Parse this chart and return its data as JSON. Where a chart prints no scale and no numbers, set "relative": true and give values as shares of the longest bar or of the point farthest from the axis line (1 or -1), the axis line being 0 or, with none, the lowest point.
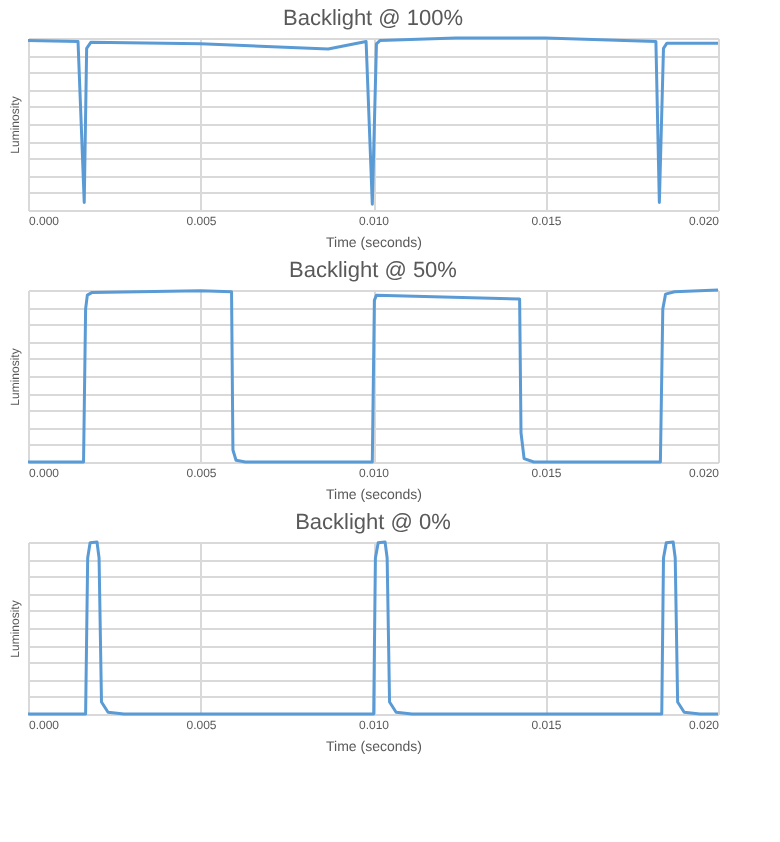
{
  "chart_data": [
    {
      "type": "line",
      "title": "Backlight @ 100%",
      "xlabel": "Time (seconds)",
      "ylabel": "Luminosity",
      "relative": true,
      "grid": true,
      "color": "#5b9bd5",
      "xlim": [
        0,
        0.02
      ],
      "xticks": [
        {
          "value": 0,
          "label": "0.000"
        },
        {
          "value": 0.005,
          "label": "0.005"
        },
        {
          "value": 0.01,
          "label": "0.010"
        },
        {
          "value": 0.015,
          "label": "0.015"
        },
        {
          "value": 0.02,
          "label": "0.020"
        }
      ],
      "x": [
        0,
        0.00145,
        0.00163,
        0.0017,
        0.00182,
        0.005,
        0.0087,
        0.0098,
        0.00998,
        0.0101,
        0.0102,
        0.0124,
        0.015,
        0.0182,
        0.0183,
        0.01842,
        0.01852,
        0.02
      ],
      "values": [
        0.985,
        0.98,
        0.044,
        0.94,
        0.975,
        0.966,
        0.936,
        0.98,
        0.034,
        0.966,
        0.985,
        1.0,
        1.0,
        0.98,
        0.044,
        0.94,
        0.97,
        0.97
      ]
    },
    {
      "type": "line",
      "title": "Backlight @ 50%",
      "xlabel": "Time (seconds)",
      "ylabel": "Luminosity",
      "relative": true,
      "grid": true,
      "color": "#5b9bd5",
      "xlim": [
        0,
        0.02
      ],
      "xticks": [
        {
          "value": 0,
          "label": "0.000"
        },
        {
          "value": 0.005,
          "label": "0.005"
        },
        {
          "value": 0.01,
          "label": "0.010"
        },
        {
          "value": 0.015,
          "label": "0.015"
        },
        {
          "value": 0.02,
          "label": "0.020"
        }
      ],
      "x": [
        0,
        0.00161,
        0.00167,
        0.00172,
        0.00186,
        0.005,
        0.0059,
        0.00594,
        0.00603,
        0.0063,
        0.00998,
        0.01004,
        0.0101,
        0.01425,
        0.01429,
        0.01438,
        0.01466,
        0.01833,
        0.0184,
        0.01848,
        0.01874,
        0.02
      ],
      "values": [
        0,
        0,
        0.89,
        0.97,
        0.986,
        0.995,
        0.99,
        0.07,
        0.01,
        0,
        0,
        0.94,
        0.97,
        0.947,
        0.17,
        0.02,
        0,
        0,
        0.89,
        0.976,
        0.99,
        1.0
      ]
    },
    {
      "type": "line",
      "title": "Backlight @ 0%",
      "xlabel": "Time (seconds)",
      "ylabel": "Luminosity",
      "relative": true,
      "grid": true,
      "color": "#5b9bd5",
      "xlim": [
        0,
        0.02
      ],
      "xticks": [
        {
          "value": 0,
          "label": "0.000"
        },
        {
          "value": 0.005,
          "label": "0.005"
        },
        {
          "value": 0.01,
          "label": "0.010"
        },
        {
          "value": 0.015,
          "label": "0.015"
        },
        {
          "value": 0.02,
          "label": "0.020"
        }
      ],
      "x": [
        0,
        0.00167,
        0.00173,
        0.0018,
        0.002,
        0.00206,
        0.00213,
        0.00232,
        0.00278,
        0.01002,
        0.01007,
        0.01015,
        0.01035,
        0.01041,
        0.01048,
        0.01067,
        0.01113,
        0.01837,
        0.01842,
        0.0185,
        0.0187,
        0.01876,
        0.01883,
        0.01902,
        0.01948,
        0.02
      ],
      "values": [
        0,
        0,
        0.907,
        0.995,
        1.0,
        0.907,
        0.07,
        0.01,
        0,
        0,
        0.907,
        0.995,
        1.0,
        0.907,
        0.07,
        0.01,
        0,
        0,
        0.907,
        0.995,
        1.0,
        0.907,
        0.07,
        0.01,
        0,
        0
      ]
    }
  ]
}
